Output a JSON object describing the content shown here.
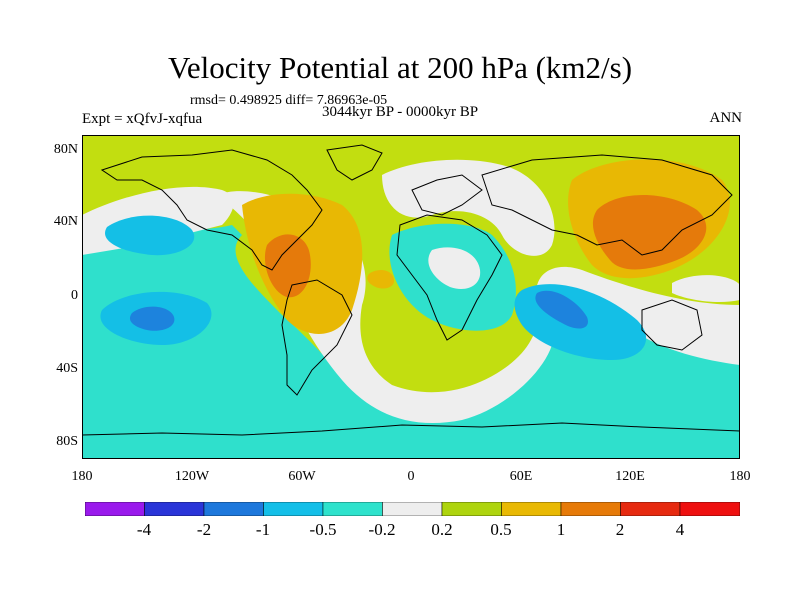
{
  "title": "Velocity Potential at 200 hPa (km2/s)",
  "stats": "rmsd= 0.498925 diff= 7.86963e-05",
  "experiment": "Expt = xQfvJ-xqfua",
  "period": "3044kyr BP - 0000kyr BP",
  "season": "ANN",
  "lat_labels": [
    "80N",
    "40N",
    "0",
    "40S",
    "80S"
  ],
  "lon_labels": [
    "180",
    "120W",
    "60W",
    "0",
    "60E",
    "120E",
    "180"
  ],
  "colorbar": {
    "labels": [
      "-4",
      "-2",
      "-1",
      "-0.5",
      "-0.2",
      "0.2",
      "0.5",
      "1",
      "2",
      "4"
    ],
    "colors": [
      "#9a1aec",
      "#2a35d8",
      "#1e78dc",
      "#14bfe8",
      "#2ee2cc",
      "#eeeeee",
      "#aed40e",
      "#e9b904",
      "#e67a08",
      "#e62a10",
      "#ee1010"
    ]
  },
  "colors": {
    "background": "#c2de10",
    "neg1": "#2fe0cc",
    "neg2": "#14bfe6",
    "neg3": "#1d83dd",
    "neutral": "#eeeeee",
    "pos1": "#e8b804",
    "pos2": "#e57a0b"
  }
}
